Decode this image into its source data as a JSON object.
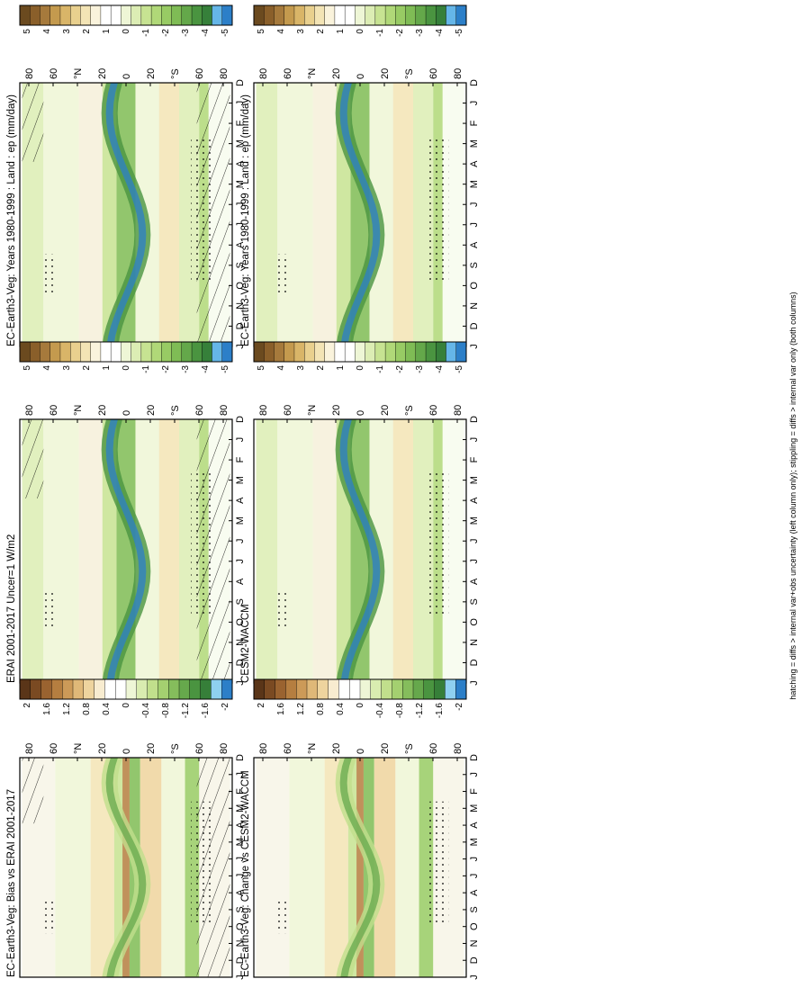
{
  "chart_data": [
    {
      "type": "heatmap",
      "id": "p1",
      "title": "EC-Earth3-Veg: Years 1980-1999 : Land : ep (mm/day)",
      "ylabels": [
        "80",
        "60",
        "°N",
        "20",
        "0",
        "20",
        "°S",
        "60",
        "80"
      ],
      "xlabels": [
        "D",
        "J",
        "F",
        "M",
        "A",
        "M",
        "J",
        "J",
        "A",
        "S",
        "O",
        "N",
        "D",
        "J"
      ],
      "colorbar": {
        "labels": [
          "5",
          "4",
          "3",
          "2",
          "1",
          "0",
          "-1",
          "-2",
          "-3",
          "-4",
          "-5"
        ],
        "colors": [
          "#6b4a1f",
          "#8a5f2a",
          "#a67a3c",
          "#c49a4e",
          "#d9b568",
          "#e9d08e",
          "#f3e4b5",
          "#faf3dc",
          "#ffffff",
          "#ffffff",
          "#eef6d6",
          "#dcedb4",
          "#c7e392",
          "#b0d878",
          "#98cb64",
          "#7fbc55",
          "#64a84a",
          "#4a9440",
          "#36803a",
          "#65b6e8",
          "#2c7fc8"
        ]
      },
      "hatching": true,
      "stippling": true
    },
    {
      "type": "heatmap",
      "id": "p2",
      "title": "EC-Earth3-Veg: Years 1980-1999 : Land : ep (mm/day)",
      "ylabels": [
        "80",
        "60",
        "°N",
        "20",
        "0",
        "20",
        "°S",
        "60",
        "80"
      ],
      "xlabels": [
        "D",
        "J",
        "F",
        "M",
        "A",
        "M",
        "J",
        "J",
        "A",
        "S",
        "O",
        "N",
        "D",
        "J"
      ],
      "colorbar": {
        "labels": [
          "5",
          "4",
          "3",
          "2",
          "1",
          "0",
          "-1",
          "-2",
          "-3",
          "-4",
          "-5"
        ],
        "colors": [
          "#6b4a1f",
          "#8a5f2a",
          "#a67a3c",
          "#c49a4e",
          "#d9b568",
          "#e9d08e",
          "#f3e4b5",
          "#faf3dc",
          "#ffffff",
          "#ffffff",
          "#eef6d6",
          "#dcedb4",
          "#c7e392",
          "#b0d878",
          "#98cb64",
          "#7fbc55",
          "#64a84a",
          "#4a9440",
          "#36803a",
          "#65b6e8",
          "#2c7fc8"
        ]
      },
      "hatching": false,
      "stippling": true
    },
    {
      "type": "heatmap",
      "id": "p3",
      "title": "ERAI 2001-2017 Uncer=1 W/m2",
      "ylabels": [
        "80",
        "60",
        "°N",
        "20",
        "0",
        "20",
        "°S",
        "60",
        "80"
      ],
      "xlabels": [
        "D",
        "J",
        "F",
        "M",
        "A",
        "M",
        "J",
        "J",
        "A",
        "S",
        "O",
        "N",
        "D",
        "J"
      ],
      "colorbar": {
        "labels": [
          "5",
          "4",
          "3",
          "2",
          "1",
          "0",
          "-1",
          "-2",
          "-3",
          "-4",
          "-5"
        ],
        "colors": [
          "#6b4a1f",
          "#8a5f2a",
          "#a67a3c",
          "#c49a4e",
          "#d9b568",
          "#e9d08e",
          "#f3e4b5",
          "#faf3dc",
          "#ffffff",
          "#ffffff",
          "#eef6d6",
          "#dcedb4",
          "#c7e392",
          "#b0d878",
          "#98cb64",
          "#7fbc55",
          "#64a84a",
          "#4a9440",
          "#36803a",
          "#65b6e8",
          "#2c7fc8"
        ]
      },
      "hatching": true,
      "stippling": true
    },
    {
      "type": "heatmap",
      "id": "p4",
      "title": "CESM2-WACCM",
      "ylabels": [
        "80",
        "60",
        "°N",
        "20",
        "0",
        "20",
        "°S",
        "60",
        "80"
      ],
      "xlabels": [
        "D",
        "J",
        "F",
        "M",
        "A",
        "M",
        "J",
        "J",
        "A",
        "S",
        "O",
        "N",
        "D",
        "J"
      ],
      "colorbar": {
        "labels": [
          "5",
          "4",
          "3",
          "2",
          "1",
          "0",
          "-1",
          "-2",
          "-3",
          "-4",
          "-5"
        ],
        "colors": [
          "#6b4a1f",
          "#8a5f2a",
          "#a67a3c",
          "#c49a4e",
          "#d9b568",
          "#e9d08e",
          "#f3e4b5",
          "#faf3dc",
          "#ffffff",
          "#ffffff",
          "#eef6d6",
          "#dcedb4",
          "#c7e392",
          "#b0d878",
          "#98cb64",
          "#7fbc55",
          "#64a84a",
          "#4a9440",
          "#36803a",
          "#65b6e8",
          "#2c7fc8"
        ]
      },
      "hatching": false,
      "stippling": true
    },
    {
      "type": "heatmap",
      "id": "p5",
      "title": "EC-Earth3-Veg: Bias vs ERAI 2001-2017",
      "ylabels": [
        "80",
        "60",
        "°N",
        "20",
        "0",
        "20",
        "°S",
        "60",
        "80"
      ],
      "xlabels": [
        "D",
        "J",
        "F",
        "M",
        "A",
        "M",
        "J",
        "J",
        "A",
        "S",
        "O",
        "N",
        "D",
        "J"
      ],
      "colorbar": {
        "labels": [
          "2",
          "1.6",
          "1.2",
          "0.8",
          "0.4",
          "0",
          "-0.4",
          "-0.8",
          "-1.2",
          "-1.6",
          "-2"
        ],
        "colors": [
          "#5a3518",
          "#7a4a22",
          "#9a6330",
          "#b57e40",
          "#cc9a58",
          "#dfb878",
          "#eed49e",
          "#f8ecd0",
          "#ffffff",
          "#ffffff",
          "#eef6d6",
          "#d9ecb0",
          "#c1df8c",
          "#a4d070",
          "#85bd5c",
          "#66a84c",
          "#4a9440",
          "#367f39",
          "#8ed0f0",
          "#2c7fc8"
        ]
      },
      "hatching": true,
      "stippling": true
    },
    {
      "type": "heatmap",
      "id": "p6",
      "title": "EC-Earth3-Veg: Change vs CESM2-WACCM",
      "ylabels": [
        "80",
        "60",
        "°N",
        "20",
        "0",
        "20",
        "°S",
        "60",
        "80"
      ],
      "xlabels": [
        "D",
        "J",
        "F",
        "M",
        "A",
        "M",
        "J",
        "J",
        "A",
        "S",
        "O",
        "N",
        "D",
        "J"
      ],
      "colorbar": {
        "labels": [
          "2",
          "1.6",
          "1.2",
          "0.8",
          "0.4",
          "0",
          "-0.4",
          "-0.8",
          "-1.2",
          "-1.6",
          "-2"
        ],
        "colors": [
          "#5a3518",
          "#7a4a22",
          "#9a6330",
          "#b57e40",
          "#cc9a58",
          "#dfb878",
          "#eed49e",
          "#f8ecd0",
          "#ffffff",
          "#ffffff",
          "#eef6d6",
          "#d9ecb0",
          "#c1df8c",
          "#a4d070",
          "#85bd5c",
          "#66a84c",
          "#4a9440",
          "#367f39",
          "#8ed0f0",
          "#2c7fc8"
        ]
      },
      "hatching": false,
      "stippling": true
    }
  ],
  "footer": "hatching = diffs > internal var+obs uncertainty (left column only); stippling = diffs > internal var only (both columns)"
}
